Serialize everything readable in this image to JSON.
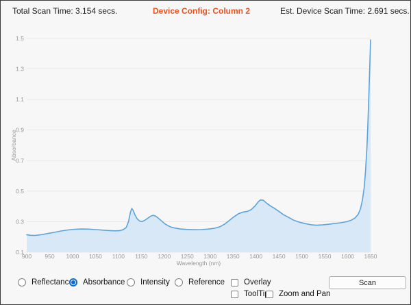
{
  "header": {
    "total_scan_time": "Total Scan Time: 3.154 secs.",
    "device_config": "Device Config: Column 2",
    "est_device_scan_time": "Est. Device Scan Time: 2.691 secs.",
    "accent_color": "#e8531f"
  },
  "chart_data": {
    "type": "area",
    "xlabel": "Wavelength (nm)",
    "ylabel": "Absorbance",
    "xlim": [
      900,
      1650
    ],
    "ylim": [
      0.1,
      1.5
    ],
    "xticks": [
      900,
      950,
      1000,
      1050,
      1100,
      1150,
      1200,
      1250,
      1300,
      1350,
      1400,
      1450,
      1500,
      1550,
      1600,
      1650
    ],
    "yticks": [
      0.1,
      0.3,
      0.5,
      0.7,
      0.9,
      1.1,
      1.3,
      1.5
    ],
    "grid": "horizontal",
    "line_color": "#5ba3d9",
    "fill_color": "#d9e8f7",
    "tick_color": "#979797",
    "grid_color": "#e9e9e9",
    "series": [
      {
        "name": "Absorbance",
        "points": [
          [
            900,
            0.215
          ],
          [
            908,
            0.211
          ],
          [
            918,
            0.21
          ],
          [
            930,
            0.214
          ],
          [
            945,
            0.222
          ],
          [
            960,
            0.23
          ],
          [
            975,
            0.239
          ],
          [
            990,
            0.246
          ],
          [
            1005,
            0.25
          ],
          [
            1020,
            0.252
          ],
          [
            1035,
            0.251
          ],
          [
            1050,
            0.248
          ],
          [
            1065,
            0.245
          ],
          [
            1080,
            0.242
          ],
          [
            1092,
            0.24
          ],
          [
            1102,
            0.241
          ],
          [
            1110,
            0.247
          ],
          [
            1117,
            0.262
          ],
          [
            1122,
            0.3
          ],
          [
            1126,
            0.36
          ],
          [
            1129,
            0.386
          ],
          [
            1132,
            0.375
          ],
          [
            1136,
            0.345
          ],
          [
            1141,
            0.318
          ],
          [
            1147,
            0.303
          ],
          [
            1152,
            0.301
          ],
          [
            1158,
            0.31
          ],
          [
            1165,
            0.325
          ],
          [
            1171,
            0.337
          ],
          [
            1176,
            0.342
          ],
          [
            1181,
            0.337
          ],
          [
            1187,
            0.323
          ],
          [
            1194,
            0.305
          ],
          [
            1202,
            0.285
          ],
          [
            1212,
            0.268
          ],
          [
            1222,
            0.259
          ],
          [
            1235,
            0.252
          ],
          [
            1250,
            0.249
          ],
          [
            1265,
            0.247
          ],
          [
            1280,
            0.248
          ],
          [
            1295,
            0.251
          ],
          [
            1310,
            0.257
          ],
          [
            1322,
            0.268
          ],
          [
            1332,
            0.285
          ],
          [
            1342,
            0.308
          ],
          [
            1352,
            0.332
          ],
          [
            1362,
            0.352
          ],
          [
            1372,
            0.363
          ],
          [
            1382,
            0.368
          ],
          [
            1390,
            0.38
          ],
          [
            1398,
            0.403
          ],
          [
            1405,
            0.43
          ],
          [
            1410,
            0.443
          ],
          [
            1416,
            0.44
          ],
          [
            1424,
            0.42
          ],
          [
            1432,
            0.402
          ],
          [
            1440,
            0.388
          ],
          [
            1450,
            0.368
          ],
          [
            1460,
            0.346
          ],
          [
            1470,
            0.33
          ],
          [
            1482,
            0.31
          ],
          [
            1495,
            0.296
          ],
          [
            1508,
            0.287
          ],
          [
            1520,
            0.28
          ],
          [
            1532,
            0.277
          ],
          [
            1545,
            0.279
          ],
          [
            1558,
            0.283
          ],
          [
            1572,
            0.288
          ],
          [
            1585,
            0.293
          ],
          [
            1598,
            0.3
          ],
          [
            1608,
            0.31
          ],
          [
            1616,
            0.324
          ],
          [
            1623,
            0.348
          ],
          [
            1628,
            0.385
          ],
          [
            1632,
            0.44
          ],
          [
            1636,
            0.52
          ],
          [
            1639,
            0.63
          ],
          [
            1642,
            0.78
          ],
          [
            1644,
            0.93
          ],
          [
            1646,
            1.1
          ],
          [
            1648,
            1.3
          ],
          [
            1650,
            1.49
          ]
        ]
      }
    ]
  },
  "controls": {
    "radios": [
      {
        "label": "Reflectance",
        "selected": false
      },
      {
        "label": "Absorbance",
        "selected": true
      },
      {
        "label": "Intensity",
        "selected": false
      },
      {
        "label": "Reference",
        "selected": false
      }
    ],
    "checkboxes": [
      {
        "label": "Overlay",
        "checked": false
      },
      {
        "label": "ToolTip",
        "checked": false
      },
      {
        "label": "Zoom and Pan",
        "checked": false
      }
    ],
    "scan_label": "Scan",
    "radio_accent": "#0a6cd6"
  }
}
